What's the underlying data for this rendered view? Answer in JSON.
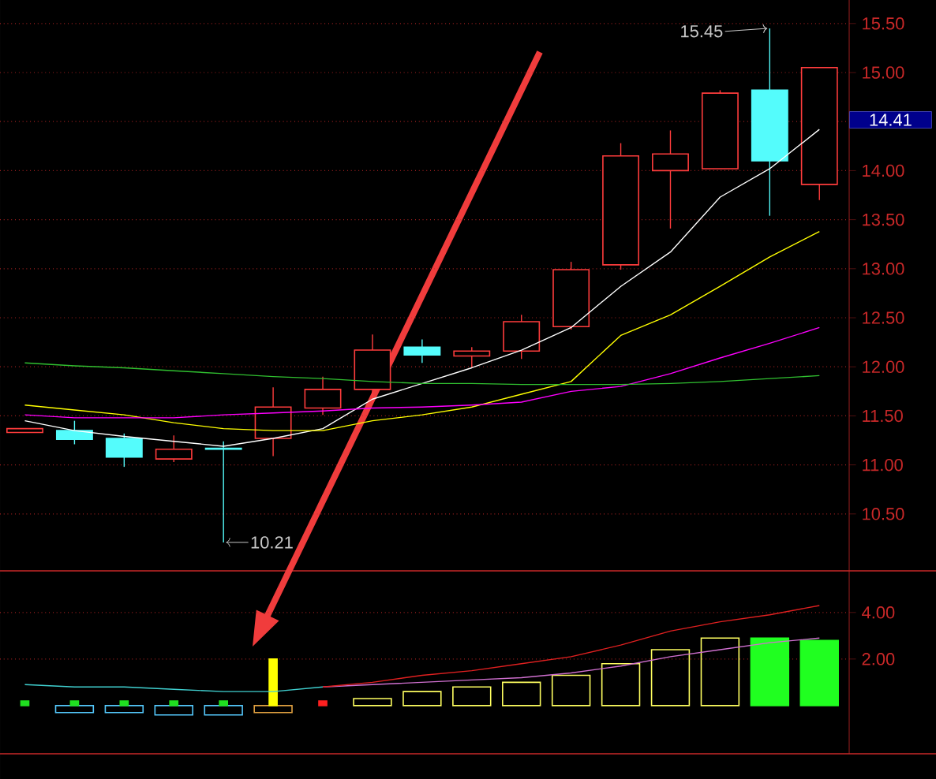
{
  "chart_data": [
    {
      "type": "candlestick",
      "categories": [
        null,
        null,
        null,
        null,
        null,
        null,
        null,
        null,
        null,
        null,
        null,
        null,
        null,
        null,
        null,
        null,
        null
      ],
      "ohlc": [
        [
          11.33,
          11.37,
          11.33,
          11.37
        ],
        [
          11.35,
          11.45,
          11.21,
          11.26
        ],
        [
          11.27,
          11.32,
          10.98,
          11.08
        ],
        [
          11.06,
          11.3,
          11.03,
          11.16
        ],
        [
          11.17,
          11.24,
          10.21,
          11.16
        ],
        [
          11.27,
          11.79,
          11.09,
          11.59
        ],
        [
          11.58,
          11.9,
          11.51,
          11.77
        ],
        [
          11.77,
          12.33,
          11.63,
          12.17
        ],
        [
          12.2,
          12.28,
          12.04,
          12.12
        ],
        [
          12.11,
          12.2,
          11.99,
          12.16
        ],
        [
          12.16,
          12.53,
          12.08,
          12.46
        ],
        [
          12.41,
          13.07,
          12.38,
          12.99
        ],
        [
          13.04,
          14.28,
          12.99,
          14.15
        ],
        [
          14.0,
          14.41,
          13.41,
          14.17
        ],
        [
          14.02,
          14.82,
          14.02,
          14.79
        ],
        [
          14.82,
          15.45,
          13.54,
          14.1
        ],
        [
          13.86,
          15.05,
          13.7,
          15.05
        ]
      ],
      "colors": [
        "#ff3c3c",
        "#54fcfc",
        "#54fcfc",
        "#ff3c3c",
        "#54fcfc",
        "#ff3c3c",
        "#ff3c3c",
        "#ff3c3c",
        "#54fcfc",
        "#ff3c3c",
        "#ff3c3c",
        "#ff3c3c",
        "#ff3c3c",
        "#ff3c3c",
        "#ff3c3c",
        "#54fcfc",
        "#ff3c3c"
      ],
      "series": [
        {
          "type": "line",
          "color": "#ffffff",
          "values": [
            11.45,
            11.35,
            11.29,
            11.24,
            11.19,
            11.27,
            11.37,
            11.67,
            11.83,
            11.99,
            12.17,
            12.4,
            12.82,
            13.17,
            13.73,
            14.02,
            14.42
          ]
        },
        {
          "type": "line",
          "color": "#ffff00",
          "values": [
            11.61,
            11.56,
            11.51,
            11.43,
            11.37,
            11.35,
            11.35,
            11.45,
            11.51,
            11.59,
            11.72,
            11.85,
            12.32,
            12.53,
            12.82,
            13.12,
            13.38
          ]
        },
        {
          "type": "line",
          "color": "#ff00ff",
          "values": [
            11.51,
            11.48,
            11.48,
            11.48,
            11.51,
            11.53,
            11.55,
            11.58,
            11.59,
            11.61,
            11.64,
            11.75,
            11.8,
            11.93,
            12.09,
            12.24,
            12.4
          ]
        },
        {
          "type": "line",
          "color": "#30c030",
          "values": [
            12.04,
            12.01,
            11.99,
            11.96,
            11.93,
            11.9,
            11.88,
            11.85,
            11.83,
            11.83,
            11.82,
            11.82,
            11.82,
            11.83,
            11.85,
            11.88,
            11.91
          ]
        }
      ],
      "ylim": [
        9.92,
        15.74
      ],
      "yticks": [
        {
          "value": 10.5,
          "label": "10.50"
        },
        {
          "value": 11,
          "label": "11.00"
        },
        {
          "value": 11.5,
          "label": "11.50"
        },
        {
          "value": 12,
          "label": "12.00"
        },
        {
          "value": 12.5,
          "label": "12.50"
        },
        {
          "value": 13,
          "label": "13.00"
        },
        {
          "value": 13.5,
          "label": "13.50"
        },
        {
          "value": 14,
          "label": "14.00"
        },
        {
          "value": 14.5,
          "label": null
        },
        {
          "value": 15,
          "label": "15.00"
        },
        {
          "value": 15.5,
          "label": "15.50"
        }
      ],
      "grid": "y",
      "tick_labels": "y",
      "annotations": [
        "15.45",
        "10.21",
        "14.41"
      ]
    },
    {
      "type": "bar",
      "categories": [
        null,
        null,
        null,
        null,
        null,
        null,
        null,
        null,
        null,
        null,
        null,
        null,
        null,
        null,
        null,
        null,
        null
      ],
      "series": [
        {
          "values": [
            null,
            -0.3,
            -0.3,
            -0.4,
            -0.4,
            -0.3,
            null,
            0.3,
            0.6,
            0.8,
            1.0,
            1.3,
            1.8,
            2.4,
            2.9,
            null,
            null
          ],
          "colors": [
            "#54c8fc",
            "#54c8fc",
            "#54c8fc",
            "#54c8fc",
            "#54c8fc",
            "#e0a040",
            "#e0a040",
            "#ffff60",
            "#ffff60",
            "#ffff60",
            "#ffff60",
            "#ffff60",
            "#ffff60",
            "#ffff60",
            "#ffff60",
            "#ffff60",
            "#ffff60"
          ]
        },
        {
          "values": [
            0.2,
            0.2,
            0.2,
            0.2,
            0.2,
            2.0,
            0.2,
            null,
            null,
            null,
            null,
            null,
            null,
            null,
            null,
            null,
            null
          ],
          "colors": [
            "#20e020",
            "#20e020",
            "#20e020",
            "#20e020",
            "#20e020",
            "#ffff00",
            "#ff2020",
            "#ffff00",
            "#ffff00",
            "#ffff00",
            "#ffff00",
            "#ffff00",
            "#ffff00",
            "#ffff00",
            "#ffff00",
            "#ffff00",
            "#ffff00"
          ]
        },
        {
          "values": [
            null,
            null,
            null,
            null,
            null,
            null,
            null,
            null,
            null,
            null,
            null,
            null,
            null,
            null,
            null,
            2.9,
            2.8
          ],
          "colors": [
            "#20ff20",
            "#20ff20",
            "#20ff20",
            "#20ff20",
            "#20ff20",
            "#20ff20",
            "#20ff20",
            "#20ff20",
            "#20ff20",
            "#20ff20",
            "#20ff20",
            "#20ff20",
            "#20ff20",
            "#20ff20",
            "#20ff20",
            "#20ff20",
            "#20ff20"
          ]
        },
        {
          "type": "line",
          "color": "#40d0d0",
          "values": [
            0.9,
            0.8,
            0.8,
            0.7,
            0.6,
            0.6,
            0.8,
            null,
            null,
            null,
            null,
            null,
            null,
            null,
            null,
            null,
            null
          ]
        },
        {
          "type": "line",
          "color": "#d070d0",
          "values": [
            null,
            null,
            null,
            null,
            null,
            null,
            0.8,
            0.9,
            1.0,
            1.1,
            1.2,
            1.4,
            1.7,
            2.1,
            2.4,
            2.7,
            2.9
          ]
        },
        {
          "type": "line",
          "color": "#e02020",
          "values": [
            null,
            null,
            null,
            null,
            null,
            null,
            0.8,
            1.0,
            1.3,
            1.5,
            1.8,
            2.1,
            2.6,
            3.2,
            3.6,
            3.9,
            4.3
          ]
        }
      ],
      "ylim": [
        -2.07,
        5.79
      ],
      "yticks": [
        {
          "value": 2,
          "label": "2.00"
        },
        {
          "value": 4,
          "label": "4.00"
        }
      ],
      "grid": "y",
      "tick_labels": "y"
    }
  ]
}
